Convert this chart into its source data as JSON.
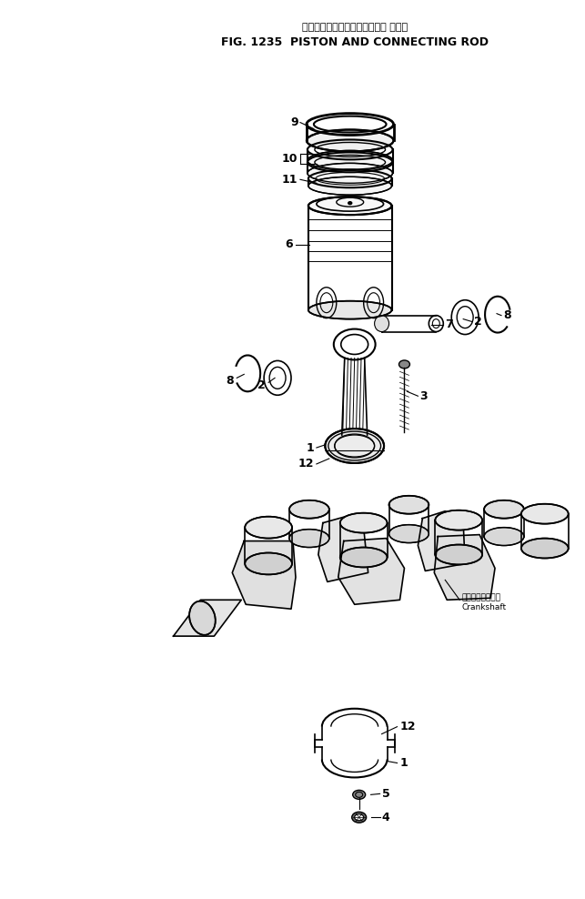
{
  "title_japanese": "ピストンおよびコネクティング ロッド",
  "title_english": "FIG. 1235  PISTON AND CONNECTING ROD",
  "background_color": "#ffffff",
  "line_color": "#000000",
  "fig_width": 6.43,
  "fig_height": 9.88,
  "dpi": 100
}
